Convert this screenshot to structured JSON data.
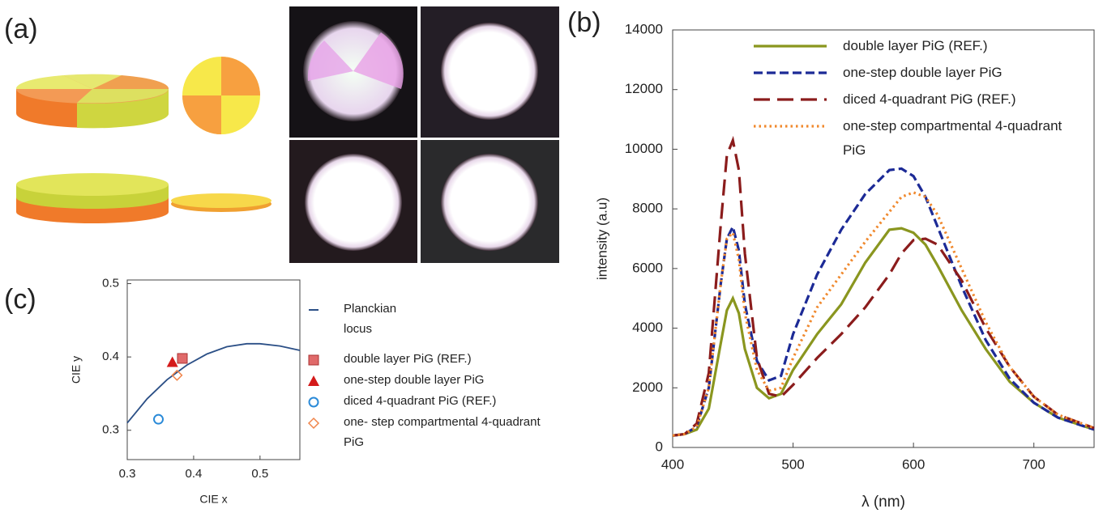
{
  "panel_labels": [
    "(a)",
    "(b)",
    "(c)"
  ],
  "chart_data": [
    {
      "type": "line",
      "xlabel": "λ (nm)",
      "ylabel": "intensity (a.u)",
      "x": [
        400,
        410,
        420,
        430,
        440,
        445,
        450,
        455,
        460,
        470,
        480,
        490,
        500,
        520,
        540,
        560,
        580,
        590,
        600,
        610,
        620,
        640,
        660,
        680,
        700,
        720,
        750
      ],
      "xlim": [
        400,
        750
      ],
      "xticks": [
        400,
        500,
        600,
        700
      ],
      "ylim": [
        0,
        14000
      ],
      "yticks": [
        0,
        2000,
        4000,
        6000,
        8000,
        10000,
        12000,
        14000
      ],
      "series": [
        {
          "name": "double layer PiG (REF.)",
          "color": "#8a961f",
          "dash": "solid",
          "values": [
            400,
            450,
            600,
            1300,
            3500,
            4600,
            5000,
            4500,
            3300,
            2000,
            1650,
            1800,
            2600,
            3800,
            4800,
            6200,
            7300,
            7350,
            7200,
            6800,
            6100,
            4600,
            3300,
            2200,
            1500,
            1000,
            600
          ]
        },
        {
          "name": "one-step double layer PiG",
          "color": "#1c2a96",
          "dash": "dashed",
          "values": [
            400,
            450,
            700,
            2000,
            5500,
            7000,
            7400,
            6600,
            4800,
            2900,
            2250,
            2400,
            3800,
            5800,
            7300,
            8500,
            9300,
            9350,
            9100,
            8400,
            7400,
            5400,
            3600,
            2300,
            1500,
            1000,
            600
          ]
        },
        {
          "name": "diced 4-quadrant PiG (REF.)",
          "color": "#8b1c1c",
          "dash": "longdash",
          "values": [
            400,
            450,
            800,
            2500,
            7500,
            9800,
            10300,
            9300,
            6500,
            3000,
            1800,
            1700,
            2100,
            3000,
            3800,
            4700,
            5800,
            6500,
            6950,
            7000,
            6800,
            5600,
            4000,
            2700,
            1700,
            1100,
            650
          ]
        },
        {
          "name": "one-step compartmental 4-quadrant PiG",
          "color": "#f0892e",
          "dash": "dotted",
          "values": [
            400,
            450,
            700,
            2000,
            5500,
            7000,
            7200,
            6300,
            4500,
            2600,
            1900,
            2000,
            3000,
            4700,
            5800,
            6900,
            7900,
            8400,
            8550,
            8400,
            7800,
            6000,
            4200,
            2700,
            1700,
            1100,
            650
          ]
        }
      ]
    },
    {
      "type": "scatter",
      "xlabel": "CIE x",
      "ylabel": "CIE y",
      "xlim": [
        0.3,
        0.56
      ],
      "xticks": [
        0.3,
        0.4,
        0.5
      ],
      "ylim": [
        0.26,
        0.505
      ],
      "yticks": [
        0.3,
        0.4,
        0.5
      ],
      "series": [
        {
          "name": "Planckian locus",
          "color": "#2b4f86",
          "marker": "line",
          "x": [
            0.3,
            0.33,
            0.36,
            0.39,
            0.42,
            0.45,
            0.48,
            0.5,
            0.53,
            0.56
          ],
          "values": [
            0.31,
            0.343,
            0.369,
            0.389,
            0.404,
            0.414,
            0.418,
            0.418,
            0.415,
            0.409
          ]
        },
        {
          "name": "double layer PiG (REF.)",
          "color": "#e06a6a",
          "marker": "square",
          "x": [
            0.383
          ],
          "values": [
            0.398
          ]
        },
        {
          "name": "one-step double layer PiG",
          "color": "#d41a1a",
          "marker": "triangle",
          "x": [
            0.368
          ],
          "values": [
            0.393
          ]
        },
        {
          "name": "diced 4-quadrant PiG (REF.)",
          "color": "#2a8ad8",
          "marker": "circle",
          "x": [
            0.347
          ],
          "values": [
            0.315
          ]
        },
        {
          "name": "one- step compartmental 4-quadrant PiG",
          "color": "#f0844a",
          "marker": "diamond",
          "x": [
            0.375
          ],
          "values": [
            0.375
          ]
        }
      ]
    }
  ]
}
